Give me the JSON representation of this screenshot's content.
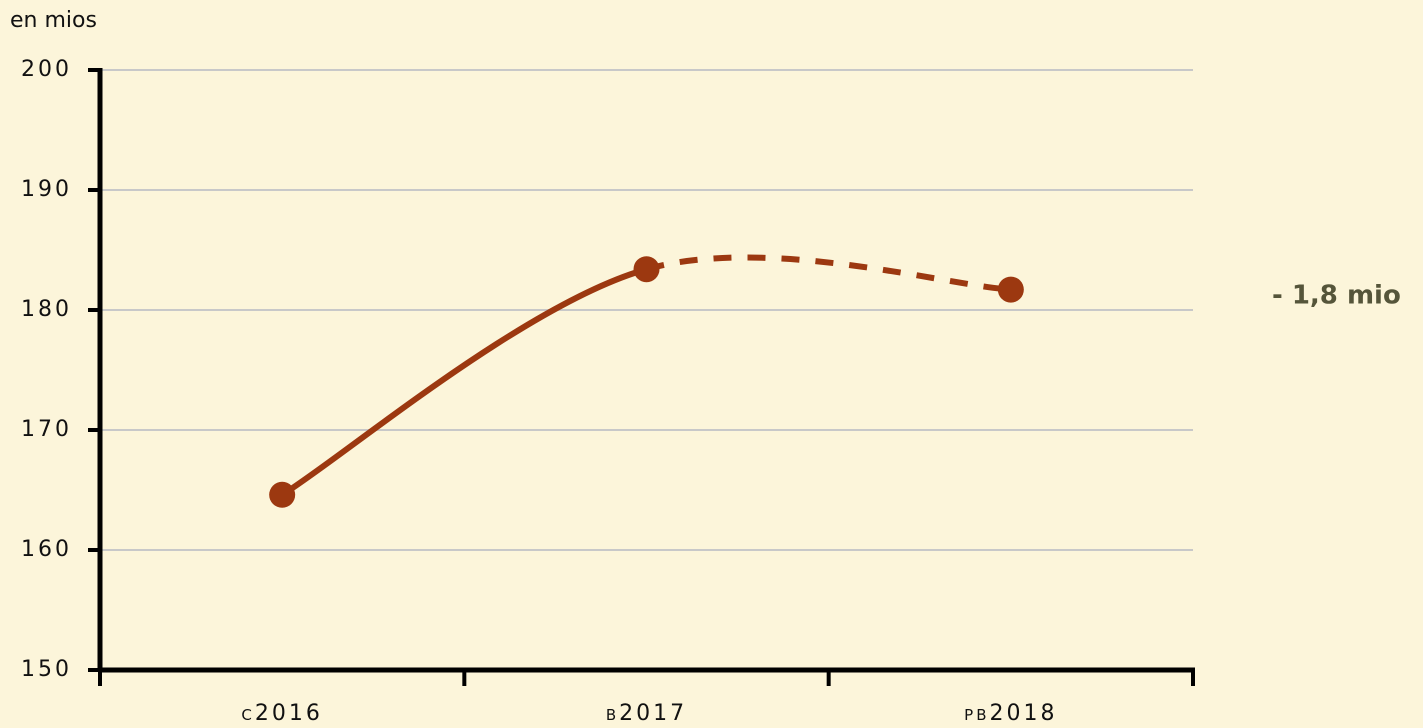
{
  "chart_data": {
    "type": "line",
    "y_label": "en mios",
    "categories": [
      "C2016",
      "B2017",
      "PB2018"
    ],
    "series": [
      {
        "name": null,
        "color": "#9c3810",
        "values": [
          164.6,
          183.4,
          181.7
        ],
        "segment_styles": [
          "solid",
          "dashed"
        ]
      }
    ],
    "ylim": [
      150,
      200
    ],
    "yticks": [
      150,
      160,
      170,
      180,
      190,
      200
    ],
    "grid": true,
    "annotation": "- 1,8 mio"
  }
}
